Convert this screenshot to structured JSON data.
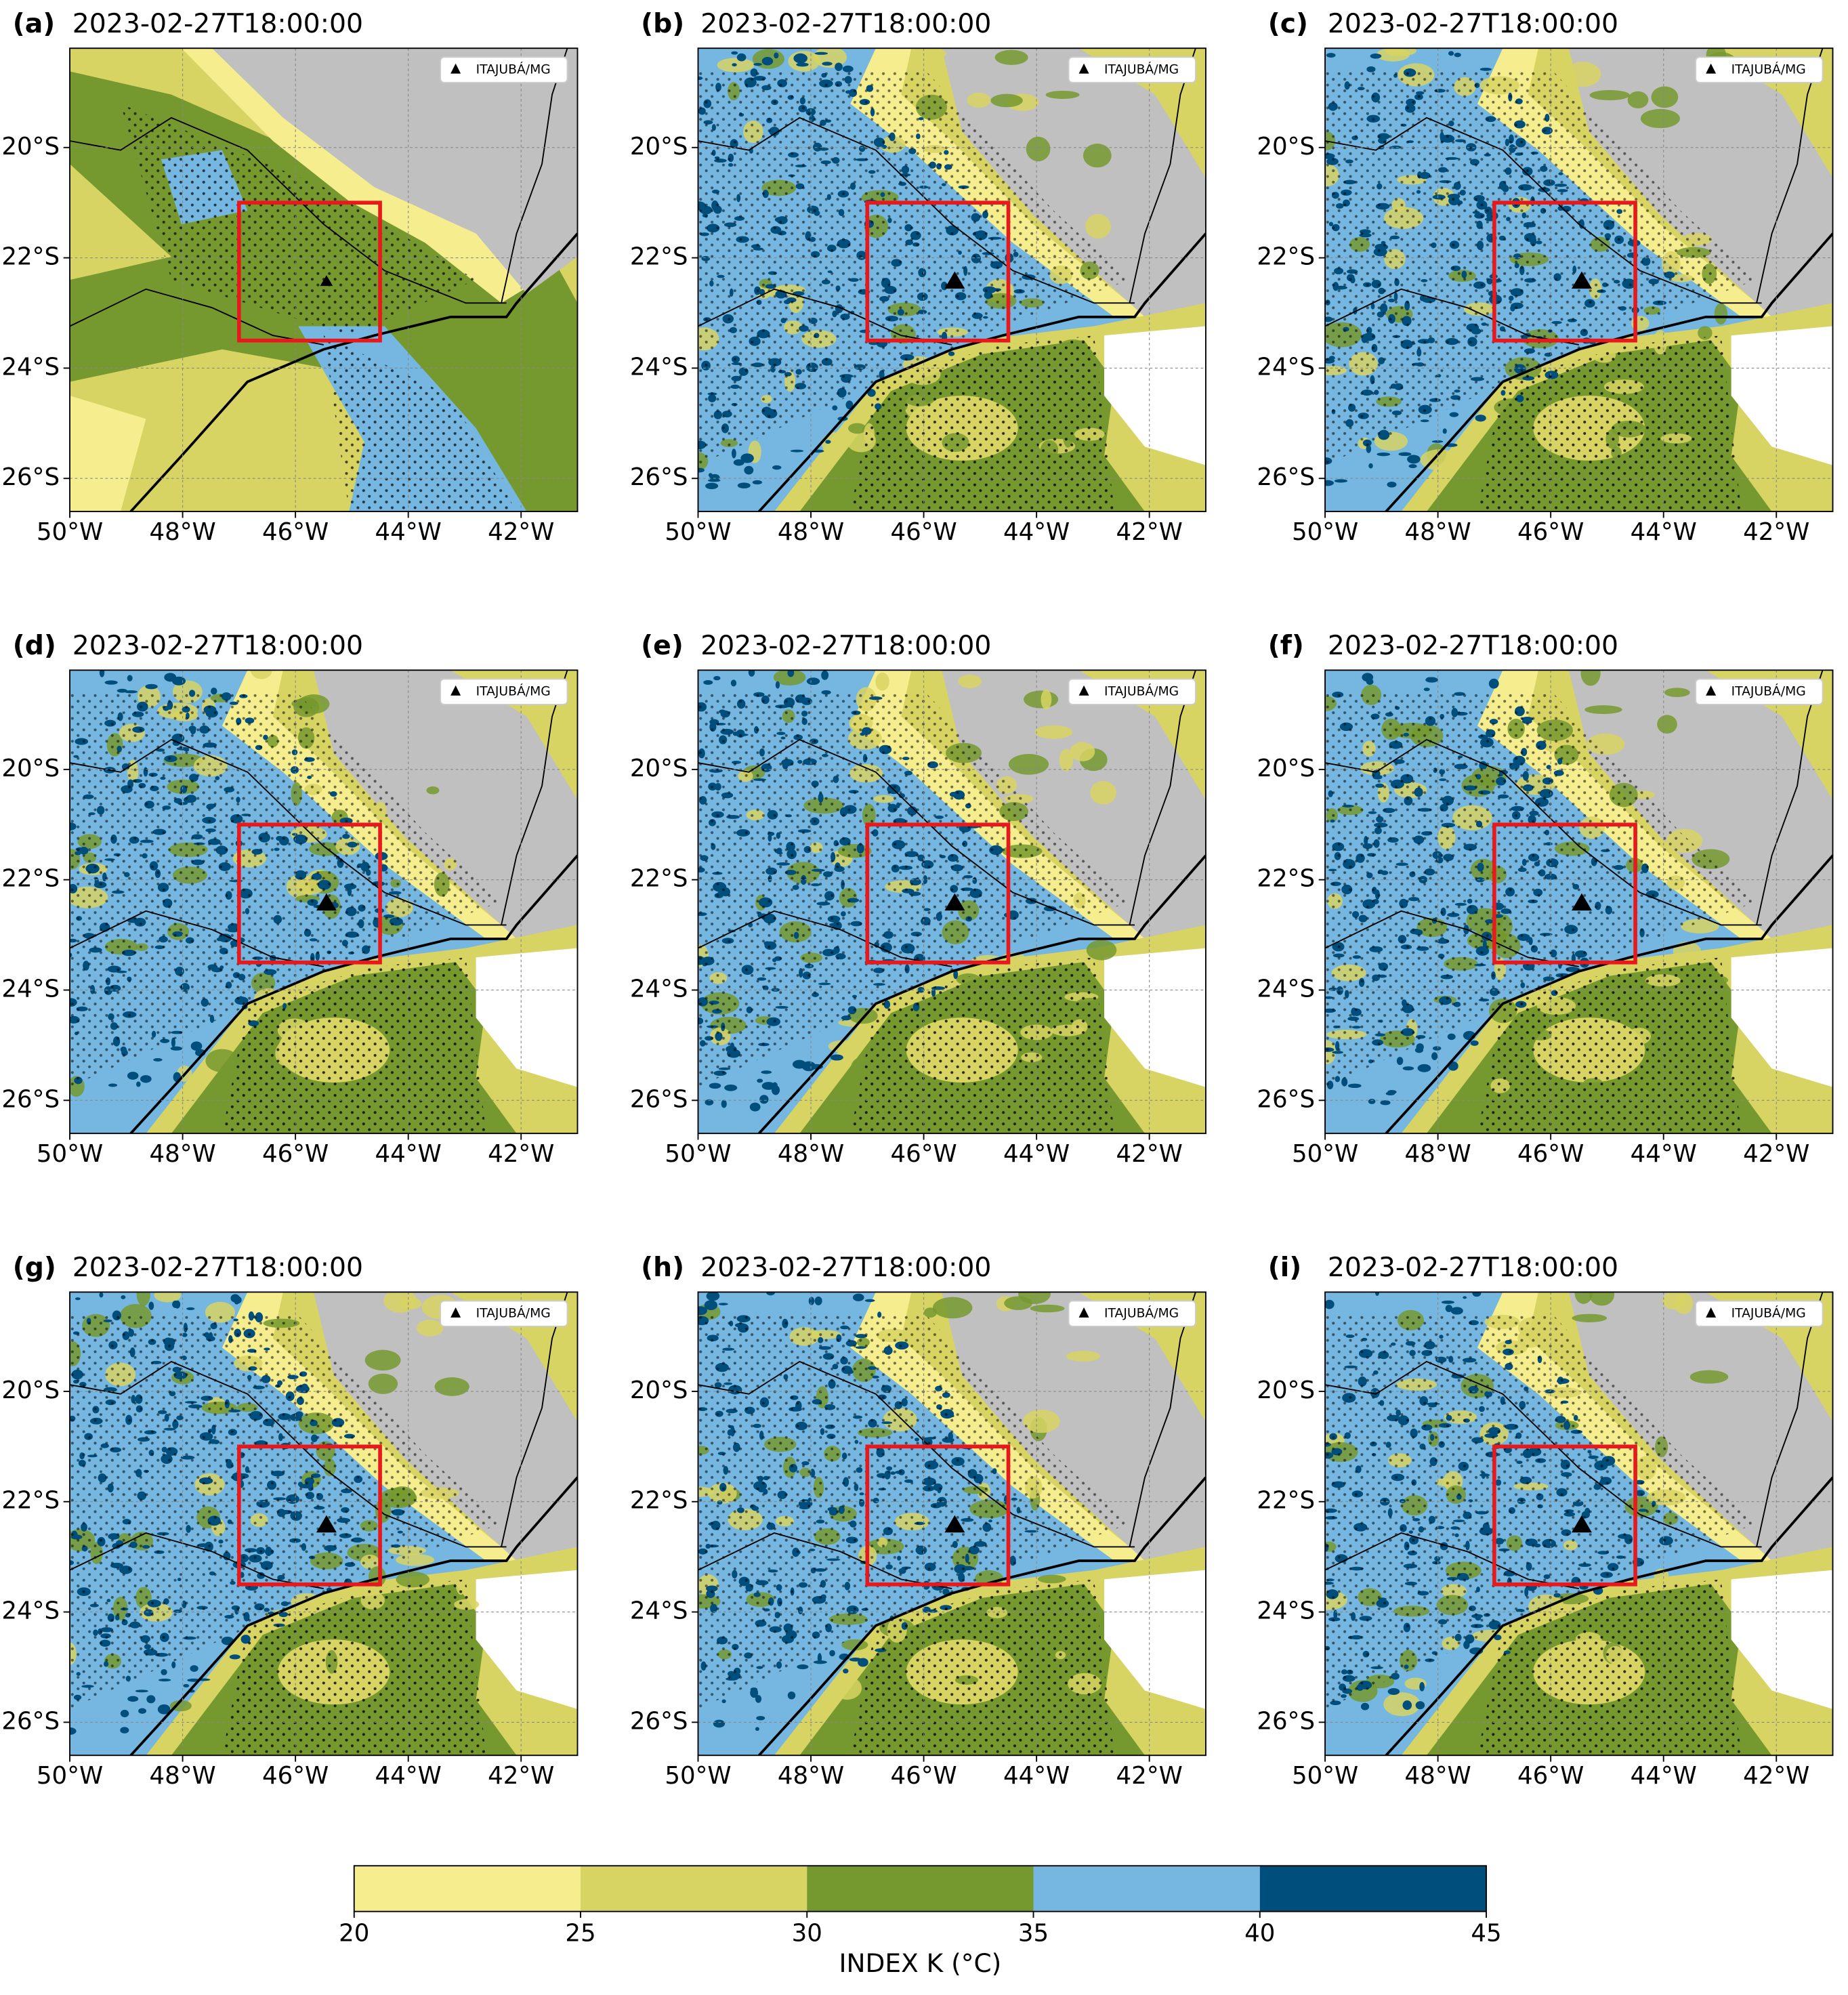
{
  "panels": [
    {
      "label": "(a)",
      "time": "2023-02-27T18:00:00"
    },
    {
      "label": "(b)",
      "time": "2023-02-27T18:00:00"
    },
    {
      "label": "(c)",
      "time": "2023-02-27T18:00:00"
    },
    {
      "label": "(d)",
      "time": "2023-02-27T18:00:00"
    },
    {
      "label": "(e)",
      "time": "2023-02-27T18:00:00"
    },
    {
      "label": "(f)",
      "time": "2023-02-27T18:00:00"
    },
    {
      "label": "(g)",
      "time": "2023-02-27T18:00:00"
    },
    {
      "label": "(h)",
      "time": "2023-02-27T18:00:00"
    },
    {
      "label": "(i)",
      "time": "2023-02-27T18:00:00"
    }
  ],
  "axes": {
    "xlim": [
      -50,
      -41
    ],
    "ylim": [
      -26.6,
      -18.2
    ],
    "xticks": [
      {
        "value": -50,
        "label": "50°W"
      },
      {
        "value": -48,
        "label": "48°W"
      },
      {
        "value": -46,
        "label": "46°W"
      },
      {
        "value": -44,
        "label": "44°W"
      },
      {
        "value": -42,
        "label": "42°W"
      }
    ],
    "yticks": [
      {
        "value": -20,
        "label": "20°S"
      },
      {
        "value": -22,
        "label": "22°S"
      },
      {
        "value": -24,
        "label": "24°S"
      },
      {
        "value": -26,
        "label": "26°S"
      }
    ],
    "grid": true
  },
  "region": {
    "lon": [
      -47,
      -44.5
    ],
    "lat": [
      -23.5,
      -21
    ],
    "color": "#e8191c"
  },
  "station": {
    "name": "ITAJUBÁ/MG",
    "lon": -45.45,
    "lat": -22.43
  },
  "colorbar": {
    "label": "INDEX K (°C)",
    "levels": [
      20,
      25,
      30,
      35,
      40,
      45
    ],
    "colors": [
      "#f6ee8e",
      "#d8d463",
      "#76992f",
      "#75b7e0",
      "#004e7c"
    ]
  }
}
